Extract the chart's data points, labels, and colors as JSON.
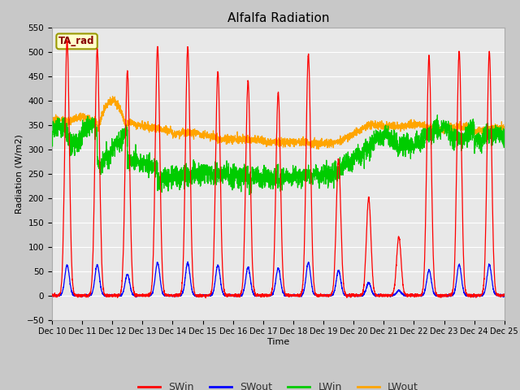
{
  "title": "Alfalfa Radiation",
  "xlabel": "Time",
  "ylabel": "Radiation (W/m2)",
  "ylim": [
    -50,
    550
  ],
  "yticks": [
    -50,
    0,
    50,
    100,
    150,
    200,
    250,
    300,
    350,
    400,
    450,
    500,
    550
  ],
  "xtick_labels": [
    "Dec 10",
    "Dec 11",
    "Dec 12",
    "Dec 13",
    "Dec 14",
    "Dec 15",
    "Dec 16",
    "Dec 17",
    "Dec 18",
    "Dec 19",
    "Dec 20",
    "Dec 21",
    "Dec 22",
    "Dec 23",
    "Dec 24",
    "Dec 25"
  ],
  "colors": {
    "SWin": "#FF0000",
    "SWout": "#0000FF",
    "LWin": "#00CC00",
    "LWout": "#FFA500"
  },
  "fig_bg_color": "#C8C8C8",
  "plot_bg_color": "#E8E8E8",
  "grid_color": "#FFFFFF",
  "annotation_box_facecolor": "#FFFFCC",
  "annotation_box_edgecolor": "#999900",
  "annotation_text": "TA_rad",
  "annotation_text_color": "#880000"
}
